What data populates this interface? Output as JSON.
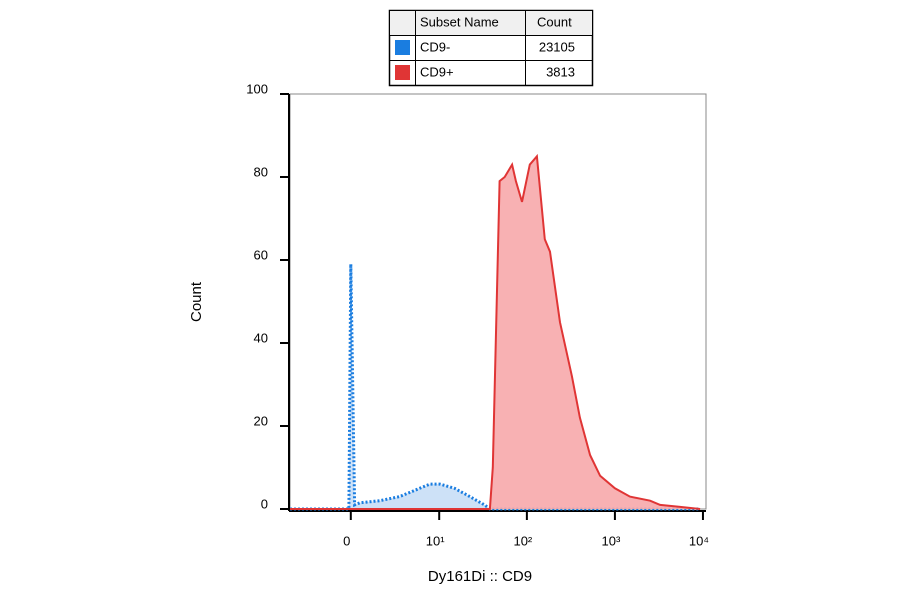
{
  "chart_data": {
    "type": "area",
    "legend_headers": [
      "Subset Name",
      "Count"
    ],
    "x_label": "Dy161Di :: CD9",
    "y_label": "Count",
    "xscale": "biexponential",
    "xlim": [
      -4.7,
      10830
    ],
    "xticks": [
      0,
      {
        "value": 10,
        "label": "10¹"
      },
      {
        "value": 100,
        "label": "10²"
      },
      {
        "value": 1000,
        "label": "10³"
      },
      {
        "value": 10000,
        "label": "10⁴"
      }
    ],
    "ylim": [
      0,
      100
    ],
    "yticks": [
      0,
      20,
      40,
      60,
      80,
      100
    ],
    "series": [
      {
        "name": "CD9-",
        "count": 23105,
        "color": "#1a7de0",
        "fill": "#c8def6",
        "dashed": true,
        "x": [
          -4.7,
          -0.1,
          0,
          0.2,
          0.48,
          1.67,
          3.3,
          5.9,
          7.8,
          10.2,
          15,
          22.5,
          33,
          38,
          9280
        ],
        "values": [
          0,
          0,
          59,
          1,
          1.5,
          2,
          3,
          5,
          6,
          6,
          5,
          3,
          1,
          0,
          0
        ]
      },
      {
        "name": "CD9+",
        "count": 3813,
        "color": "#e03535",
        "fill": "#f7a9ab",
        "dashed": false,
        "x": [
          -4.7,
          38,
          41,
          49,
          56,
          68,
          75,
          88,
          108,
          130,
          160,
          183,
          238,
          325,
          400,
          522,
          678,
          1000,
          1480,
          2510,
          3260,
          5500,
          9280
        ],
        "values": [
          0,
          0,
          10,
          79,
          80,
          83,
          79,
          74,
          83,
          85,
          65,
          62,
          45,
          32,
          22,
          13,
          8,
          5,
          3,
          2,
          1,
          0.5,
          0
        ]
      }
    ]
  }
}
